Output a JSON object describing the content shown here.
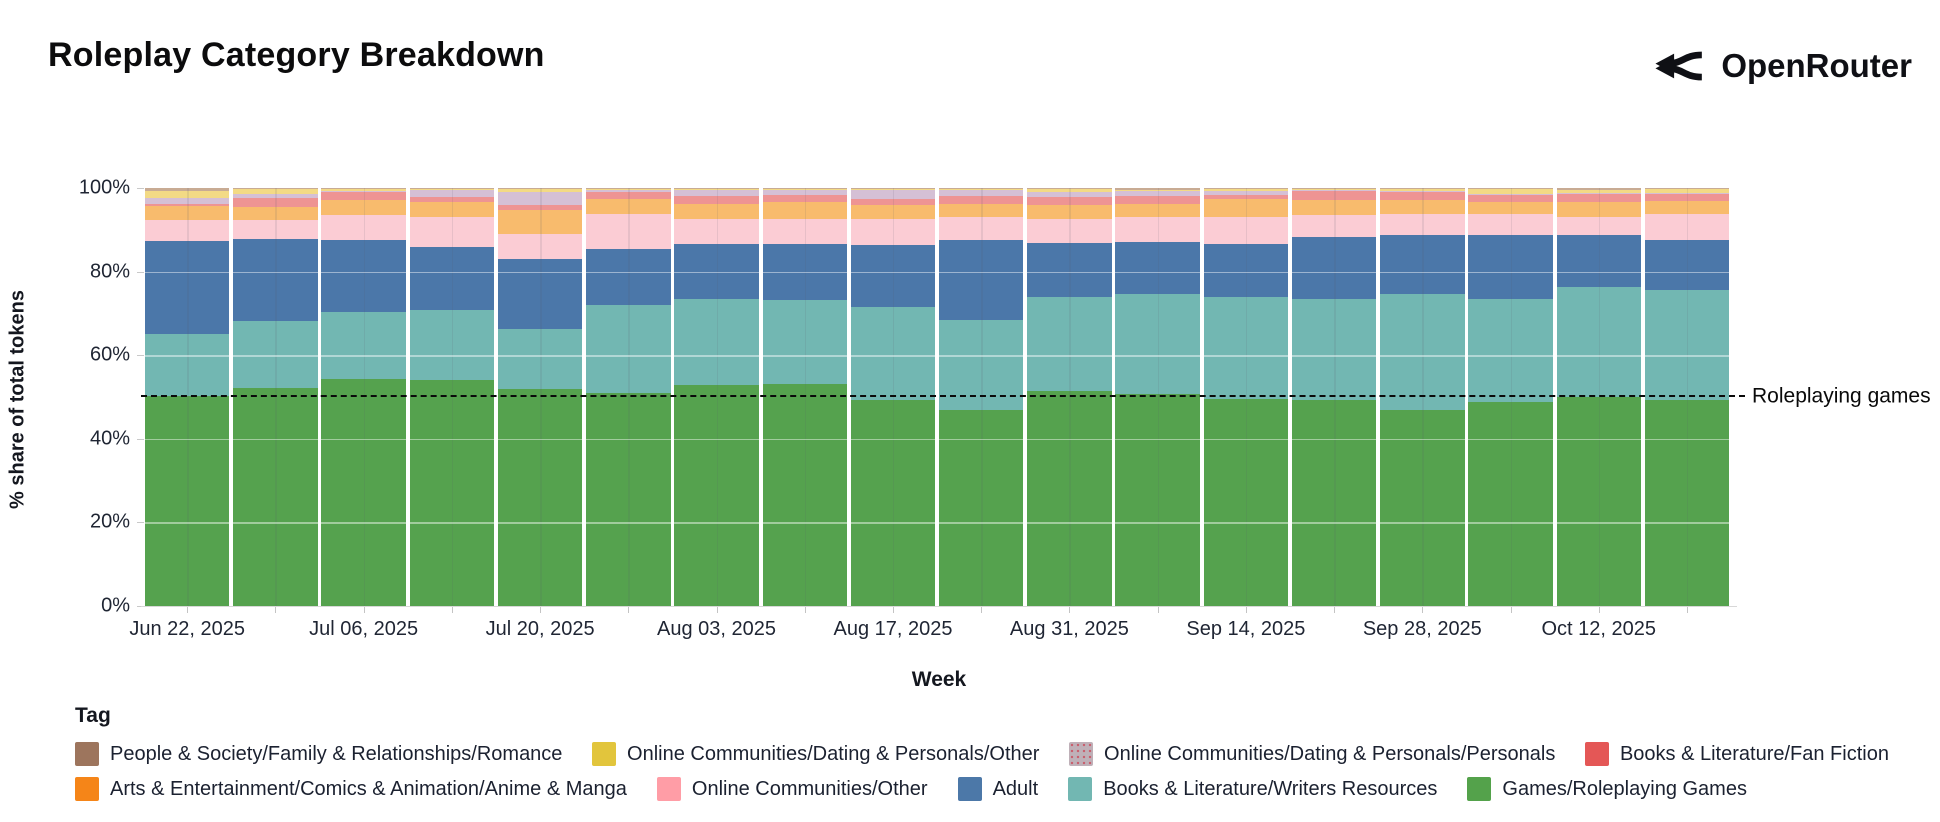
{
  "header": {
    "title": "Roleplay Category Breakdown",
    "brand": "OpenRouter"
  },
  "annotation": {
    "label": "Roleplaying games",
    "value_pct": 50
  },
  "y_axis": {
    "title": "% share of total tokens",
    "ticks": [
      "100%",
      "80%",
      "60%",
      "40%",
      "20%",
      "0%"
    ]
  },
  "x_axis": {
    "title": "Week",
    "tick_labels": [
      "Jun 22, 2025",
      "Jul 06, 2025",
      "Jul 20, 2025",
      "Aug 03, 2025",
      "Aug 17, 2025",
      "Aug 31, 2025",
      "Sep 14, 2025",
      "Sep 28, 2025",
      "Oct 12, 2025"
    ]
  },
  "legend": {
    "title": "Tag",
    "rows": [
      [
        {
          "label": "People & Society/Family & Relationships/Romance",
          "color": "#9d755d",
          "pattern": "solid"
        },
        {
          "label": "Online Communities/Dating & Personals/Other",
          "color": "#e2c53c",
          "pattern": "solid"
        },
        {
          "label": "Online Communities/Dating & Personals/Personals",
          "color": "#bfb0b8",
          "pattern": "dotted"
        },
        {
          "label": "Books & Literature/Fan Fiction",
          "color": "#e45756",
          "pattern": "solid"
        }
      ],
      [
        {
          "label": "Arts & Entertainment/Comics & Animation/Anime & Manga",
          "color": "#f58518",
          "pattern": "solid"
        },
        {
          "label": "Online Communities/Other",
          "color": "#ff9da6",
          "pattern": "solid"
        },
        {
          "label": "Adult",
          "color": "#4c78a8",
          "pattern": "solid"
        },
        {
          "label": "Books & Literature/Writers Resources",
          "color": "#72b7b2",
          "pattern": "solid"
        },
        {
          "label": "Games/Roleplaying Games",
          "color": "#54a24b",
          "pattern": "solid"
        }
      ]
    ]
  },
  "chart_data": {
    "type": "bar",
    "subtype": "stacked-100pct-weekly",
    "title": "Roleplay Category Breakdown",
    "xlabel": "Week",
    "ylabel": "% share of total tokens",
    "ylim": [
      0,
      100
    ],
    "grid": "horizontal-white-overlay",
    "legend_position": "bottom",
    "reference_line": {
      "y": 50,
      "style": "dashed-black",
      "label": "Roleplaying games"
    },
    "x": [
      "Jun 22, 2025",
      "Jun 29, 2025",
      "Jul 06, 2025",
      "Jul 13, 2025",
      "Jul 20, 2025",
      "Jul 27, 2025",
      "Aug 03, 2025",
      "Aug 10, 2025",
      "Aug 17, 2025",
      "Aug 24, 2025",
      "Aug 31, 2025",
      "Sep 07, 2025",
      "Sep 14, 2025",
      "Sep 21, 2025",
      "Sep 28, 2025",
      "Oct 05, 2025",
      "Oct 12, 2025",
      "Oct 19, 2025"
    ],
    "x_tick_shown_every": 2,
    "series": [
      {
        "name": "Games/Roleplaying Games",
        "bar_color": "#55a24e",
        "values": [
          50.3,
          52.2,
          54.2,
          54.0,
          51.9,
          50.9,
          52.8,
          53.0,
          49.4,
          46.8,
          51.5,
          50.7,
          49.6,
          49.4,
          46.8,
          48.8,
          50.0,
          49.3
        ]
      },
      {
        "name": "Books & Literature/Writers Resources",
        "bar_color": "#72b7b2",
        "values": [
          14.8,
          16.0,
          16.1,
          16.8,
          14.4,
          21.1,
          20.6,
          20.2,
          22.1,
          21.6,
          22.4,
          23.9,
          24.3,
          24.0,
          27.8,
          24.6,
          26.3,
          26.3
        ]
      },
      {
        "name": "Adult",
        "bar_color": "#4b77a9",
        "values": [
          22.2,
          19.6,
          17.3,
          15.1,
          16.7,
          13.4,
          13.2,
          13.4,
          14.9,
          19.2,
          12.9,
          12.5,
          12.7,
          14.9,
          14.2,
          15.4,
          12.5,
          12.0
        ]
      },
      {
        "name": "Online Communities/Other",
        "bar_color": "#fbccd4",
        "values": [
          5.0,
          4.5,
          5.9,
          7.2,
          6.0,
          8.4,
          6.0,
          6.0,
          6.2,
          5.5,
          5.8,
          6.0,
          6.5,
          5.2,
          5.0,
          5.0,
          4.3,
          6.2
        ]
      },
      {
        "name": "Arts & Entertainment/Comics & Animation/Anime & Manga",
        "bar_color": "#f8bb6d",
        "values": [
          3.4,
          3.2,
          3.6,
          3.6,
          5.7,
          3.6,
          3.6,
          4.0,
          3.3,
          3.1,
          3.3,
          3.1,
          4.3,
          3.6,
          3.3,
          2.9,
          3.6,
          3.1
        ]
      },
      {
        "name": "Books & Literature/Fan Fiction",
        "bar_color": "#ee9493",
        "values": [
          0.5,
          2.1,
          1.9,
          1.1,
          1.2,
          1.6,
          2.0,
          1.7,
          1.5,
          1.9,
          1.9,
          2.0,
          0.9,
          2.2,
          1.9,
          1.6,
          1.9,
          1.7
        ]
      },
      {
        "name": "Online Communities/Dating & Personals/Personals",
        "bar_color": "#d5c0d5",
        "pattern": "dotted",
        "values": [
          1.4,
          1.0,
          0.2,
          1.7,
          3.1,
          0.5,
          1.4,
          1.2,
          2.1,
          1.4,
          1.2,
          1.1,
          1.0,
          0.3,
          0.2,
          0.3,
          0.2,
          0.2
        ]
      },
      {
        "name": "Online Communities/Dating & Personals/Other",
        "bar_color": "#f3da85",
        "values": [
          1.7,
          1.2,
          0.5,
          0.3,
          0.9,
          0.4,
          0.3,
          0.4,
          0.4,
          0.4,
          0.9,
          0.3,
          0.5,
          0.3,
          0.6,
          1.2,
          0.8,
          1.1
        ]
      },
      {
        "name": "People & Society/Family & Relationships/Romance",
        "bar_color": "#c8ab94",
        "values": [
          0.7,
          0.2,
          0.3,
          0.2,
          0.1,
          0.1,
          0.1,
          0.1,
          0.1,
          0.1,
          0.1,
          0.4,
          0.2,
          0.1,
          0.2,
          0.2,
          0.4,
          0.1
        ]
      }
    ]
  }
}
